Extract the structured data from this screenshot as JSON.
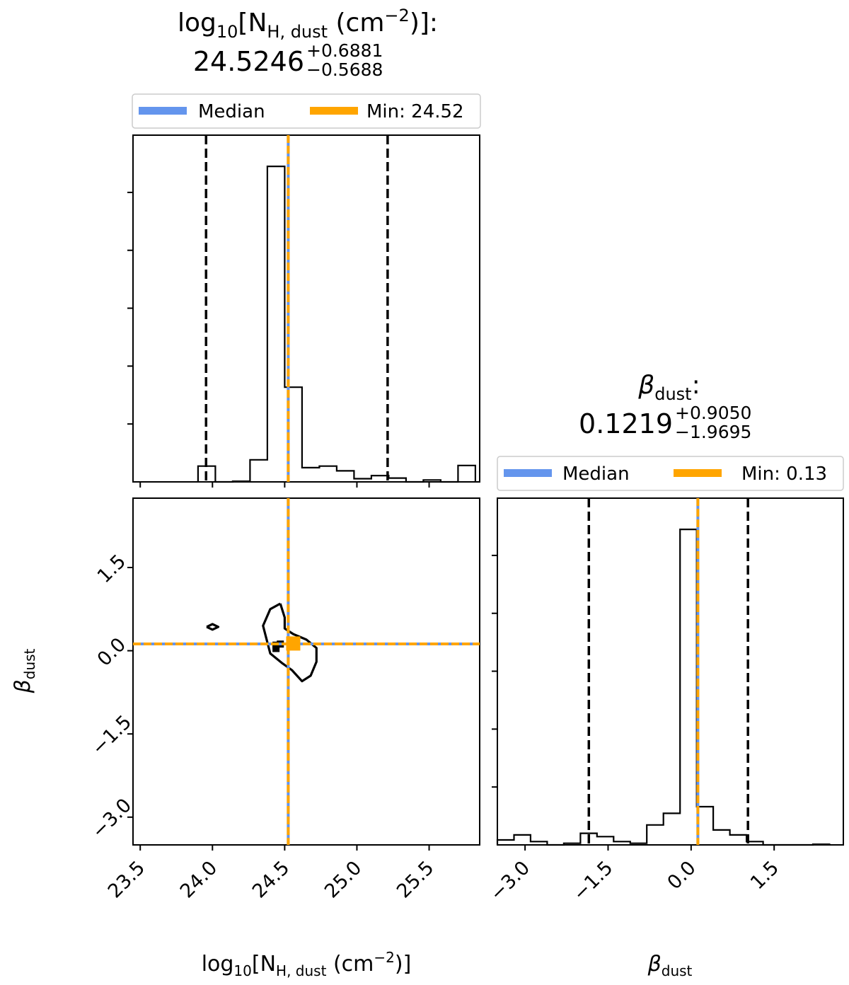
{
  "colors": {
    "median": "#6495ed",
    "min": "#ffa500",
    "ink": "#000000",
    "background": "#ffffff"
  },
  "legend_text": {
    "median": "Median",
    "min_nh": "Min: 24.52",
    "min_beta": "Min: 0.13"
  },
  "titles": {
    "nh": {
      "label_base": "log",
      "label_base_sub": "10",
      "label_n": "[N",
      "label_n_sub": "H, dust",
      "label_unit": " (cm",
      "label_unit_sup": "−2",
      "label_close": ")]:",
      "value": "24.5246",
      "plus": "+0.6881",
      "minus": "−0.5688"
    },
    "beta": {
      "label": "β",
      "label_sub": "dust",
      "label_colon": ":",
      "value": "0.1219",
      "plus": "+0.9050",
      "minus": "−1.9695"
    }
  },
  "axes": {
    "x_nh_label": {
      "base": "log",
      "base_sub": "10",
      "n": "[N",
      "n_sub": "H, dust",
      "unit": " (cm",
      "unit_sup": "−2",
      "close": ")]"
    },
    "beta_label": {
      "sym": "β",
      "sub": "dust"
    },
    "nh_ticks": [
      "23.5",
      "24.0",
      "24.5",
      "25.0",
      "25.5"
    ],
    "beta_ticks": [
      "−3.0",
      "−1.5",
      "0.0",
      "1.5"
    ]
  },
  "chart_data": [
    {
      "type": "histogram",
      "panel": "nh-marginal",
      "xlim": [
        23.45,
        25.85
      ],
      "bin_edges": [
        23.9,
        24.02,
        24.14,
        24.26,
        24.38,
        24.5,
        24.62,
        24.74,
        24.86,
        24.98,
        25.1,
        25.22,
        25.34,
        25.46,
        25.58,
        25.7,
        25.82
      ],
      "counts": [
        0.05,
        0,
        0.002,
        0.07,
        1,
        0.3,
        0.045,
        0.05,
        0.035,
        0.01,
        0.02,
        0.012,
        0,
        0.006,
        0,
        0.052
      ],
      "median": 24.5246,
      "min": 24.52,
      "quantile_lines": [
        23.9558,
        25.2127
      ],
      "legend": [
        "Median",
        "Min: 24.52"
      ],
      "legend_position": "top"
    },
    {
      "type": "contour",
      "panel": "nh-vs-beta",
      "xlim": [
        23.45,
        25.85
      ],
      "ylim": [
        -3.5,
        2.75
      ],
      "median_x": 24.5246,
      "median_y": 0.1219,
      "min_point": [
        24.52,
        0.13
      ],
      "contours": [
        [
          [
            24.47,
            0.85
          ],
          [
            24.4,
            0.75
          ],
          [
            24.35,
            0.45
          ],
          [
            24.38,
            0.15
          ],
          [
            24.4,
            -0.05
          ],
          [
            24.48,
            -0.22
          ],
          [
            24.55,
            -0.35
          ],
          [
            24.62,
            -0.55
          ],
          [
            24.68,
            -0.45
          ],
          [
            24.72,
            -0.2
          ],
          [
            24.72,
            0.05
          ],
          [
            24.65,
            0.2
          ],
          [
            24.56,
            0.3
          ],
          [
            24.5,
            0.4
          ],
          [
            24.5,
            0.6
          ],
          [
            24.47,
            0.85
          ]
        ],
        [
          [
            23.96,
            0.43
          ],
          [
            24.0,
            0.48
          ],
          [
            24.04,
            0.43
          ],
          [
            24.0,
            0.38
          ],
          [
            23.96,
            0.43
          ]
        ]
      ],
      "points": [
        [
          24.44,
          0.1
        ],
        [
          24.44,
          0.04
        ],
        [
          24.47,
          0.12
        ]
      ]
    },
    {
      "type": "histogram",
      "panel": "beta-marginal",
      "xlim": [
        -3.5,
        2.75
      ],
      "bin_edges": [
        -3.5,
        -3.2,
        -2.9,
        -2.6,
        -2.3,
        -2.0,
        -1.7,
        -1.4,
        -1.1,
        -0.8,
        -0.5,
        -0.2,
        0.1,
        0.4,
        0.7,
        1.0,
        1.3,
        1.6,
        1.9,
        2.2,
        2.5
      ],
      "counts": [
        0.015,
        0.03,
        0.01,
        0.0,
        0.005,
        0.035,
        0.025,
        0.01,
        0.005,
        0.06,
        0.095,
        0.95,
        0.115,
        0.045,
        0.03,
        0.01,
        0.0,
        0.0,
        0.0,
        0.002
      ],
      "median": 0.1219,
      "min": 0.13,
      "quantile_lines": [
        -1.8476,
        1.0269
      ],
      "legend": [
        "Median",
        "Min: 0.13"
      ],
      "legend_position": "top"
    }
  ]
}
